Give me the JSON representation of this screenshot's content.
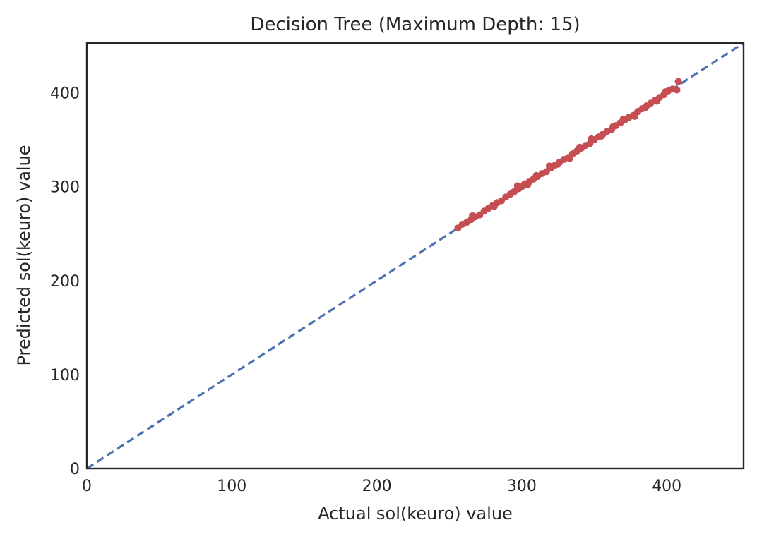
{
  "chart_data": {
    "type": "scatter",
    "title": "Decision Tree (Maximum Depth: 15)",
    "xlabel": "Actual sol(keuro) value",
    "ylabel": "Predicted sol(keuro) value",
    "xlim": [
      0,
      453
    ],
    "ylim": [
      0,
      453
    ],
    "x_ticks": [
      0,
      100,
      200,
      300,
      400
    ],
    "y_ticks": [
      0,
      100,
      200,
      300,
      400
    ],
    "x_tick_labels": [
      "0",
      "100",
      "200",
      "300",
      "400"
    ],
    "y_tick_labels": [
      "0",
      "100",
      "200",
      "300",
      "400"
    ],
    "grid": false,
    "reference_line": {
      "style": "dashed",
      "color": "#4c72b0",
      "x": [
        0,
        453
      ],
      "y": [
        0,
        453
      ]
    },
    "series": [
      {
        "color": "#c44e52",
        "points": [
          [
            256,
            256
          ],
          [
            259,
            260
          ],
          [
            262,
            262
          ],
          [
            265,
            265
          ],
          [
            268,
            268
          ],
          [
            271,
            270
          ],
          [
            274,
            274
          ],
          [
            277,
            277
          ],
          [
            280,
            280
          ],
          [
            283,
            283
          ],
          [
            286,
            285
          ],
          [
            289,
            289
          ],
          [
            292,
            292
          ],
          [
            295,
            295
          ],
          [
            298,
            298
          ],
          [
            300,
            300
          ],
          [
            302,
            303
          ],
          [
            305,
            305
          ],
          [
            308,
            308
          ],
          [
            311,
            311
          ],
          [
            314,
            314
          ],
          [
            317,
            316
          ],
          [
            320,
            320
          ],
          [
            323,
            323
          ],
          [
            326,
            326
          ],
          [
            329,
            329
          ],
          [
            332,
            331
          ],
          [
            335,
            335
          ],
          [
            338,
            338
          ],
          [
            341,
            341
          ],
          [
            344,
            344
          ],
          [
            347,
            346
          ],
          [
            350,
            350
          ],
          [
            353,
            353
          ],
          [
            356,
            356
          ],
          [
            359,
            359
          ],
          [
            362,
            361
          ],
          [
            365,
            365
          ],
          [
            368,
            368
          ],
          [
            371,
            371
          ],
          [
            374,
            374
          ],
          [
            377,
            376
          ],
          [
            380,
            380
          ],
          [
            383,
            383
          ],
          [
            386,
            386
          ],
          [
            389,
            389
          ],
          [
            392,
            392
          ],
          [
            395,
            395
          ],
          [
            398,
            398
          ],
          [
            401,
            402
          ],
          [
            404,
            404
          ],
          [
            407,
            403
          ],
          [
            408,
            412
          ],
          [
            294,
            294
          ],
          [
            297,
            301
          ],
          [
            304,
            302
          ],
          [
            319,
            322
          ],
          [
            333,
            330
          ],
          [
            348,
            351
          ],
          [
            363,
            364
          ],
          [
            378,
            375
          ],
          [
            393,
            391
          ],
          [
            266,
            269
          ],
          [
            281,
            279
          ],
          [
            310,
            312
          ],
          [
            325,
            324
          ],
          [
            340,
            342
          ],
          [
            355,
            354
          ],
          [
            370,
            372
          ],
          [
            385,
            384
          ],
          [
            399,
            401
          ]
        ]
      }
    ]
  }
}
